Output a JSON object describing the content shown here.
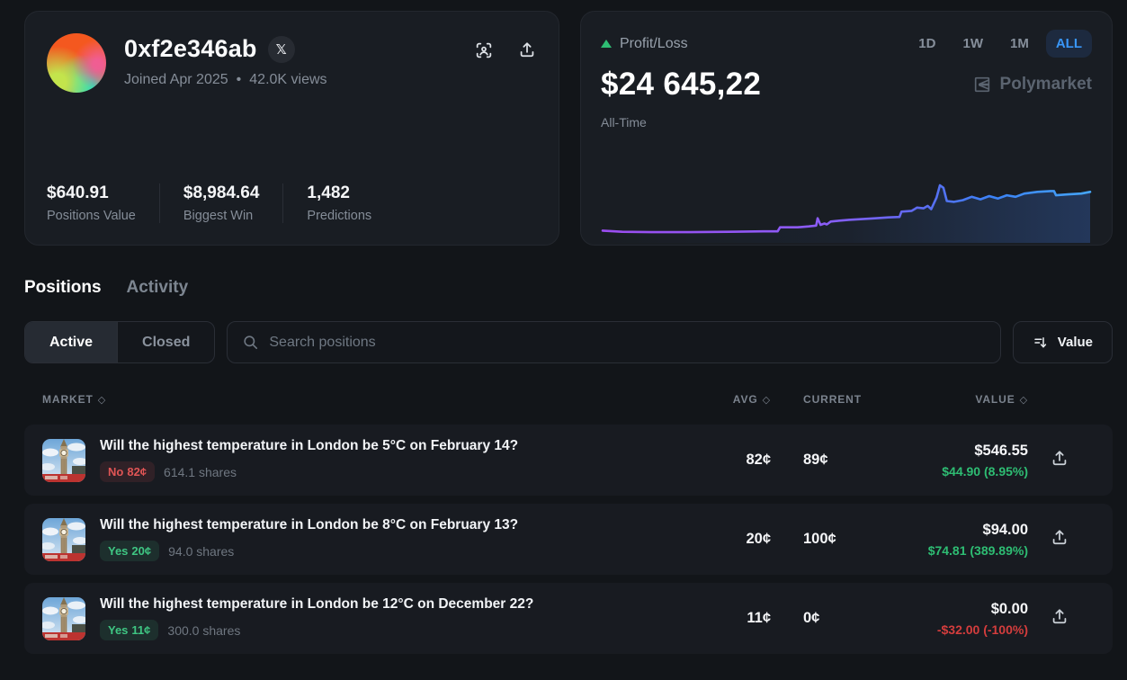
{
  "profile": {
    "username": "0xf2e346ab",
    "x_badge_glyph": "𝕏",
    "joined": "Joined Apr 2025",
    "separator": "•",
    "views": "42.0K views",
    "stats": [
      {
        "value": "$640.91",
        "label": "Positions Value"
      },
      {
        "value": "$8,984.64",
        "label": "Biggest Win"
      },
      {
        "value": "1,482",
        "label": "Predictions"
      }
    ]
  },
  "pnl": {
    "title": "Profit/Loss",
    "ranges": [
      "1D",
      "1W",
      "1M",
      "ALL"
    ],
    "active_range": "ALL",
    "amount": "$24 645,22",
    "period": "All-Time",
    "brand": "Polymarket"
  },
  "chart_data": {
    "type": "line",
    "title": "Profit/Loss All-Time",
    "legend": "none",
    "axes": "hidden",
    "final_value_label": "$24 645,22",
    "line_gradient": [
      "#9b4df0",
      "#8b5cf6",
      "#5f6af0",
      "#3b82f6",
      "#45a5f7"
    ],
    "series": [
      {
        "name": "Profit/Loss",
        "points": [
          [
            0,
            5.7
          ],
          [
            4,
            3.6
          ],
          [
            10,
            2.9
          ],
          [
            18,
            2.9
          ],
          [
            26,
            3.6
          ],
          [
            33,
            4.3
          ],
          [
            35.9,
            4.3
          ],
          [
            36.4,
            11.4
          ],
          [
            40,
            11.4
          ],
          [
            42.3,
            12.9
          ],
          [
            43.8,
            14.3
          ],
          [
            44.1,
            27
          ],
          [
            44.7,
            15.7
          ],
          [
            45.5,
            18
          ],
          [
            46,
            16.4
          ],
          [
            46.8,
            21.4
          ],
          [
            48.6,
            22.9
          ],
          [
            50.5,
            24.3
          ],
          [
            53.2,
            25.7
          ],
          [
            55.9,
            27.1
          ],
          [
            58.6,
            28.6
          ],
          [
            60.9,
            29.3
          ],
          [
            61.3,
            38.6
          ],
          [
            63.4,
            40
          ],
          [
            64.5,
            45.7
          ],
          [
            65.8,
            44.3
          ],
          [
            66.7,
            48.6
          ],
          [
            67.4,
            42.9
          ],
          [
            68.5,
            62.9
          ],
          [
            69.2,
            84.3
          ],
          [
            69.9,
            80
          ],
          [
            70.6,
            57.1
          ],
          [
            72.1,
            55.7
          ],
          [
            73.9,
            58.6
          ],
          [
            75.7,
            64.3
          ],
          [
            77.5,
            60
          ],
          [
            79.3,
            65.7
          ],
          [
            81.1,
            61.4
          ],
          [
            82.9,
            67.1
          ],
          [
            84.7,
            64.3
          ],
          [
            86.5,
            70
          ],
          [
            89.2,
            72.9
          ],
          [
            91.9,
            74.3
          ],
          [
            92.6,
            74.3
          ],
          [
            93,
            67.1
          ],
          [
            95.5,
            68.6
          ],
          [
            98.2,
            70
          ],
          [
            100,
            72.9
          ]
        ]
      }
    ]
  },
  "tabs": [
    {
      "label": "Positions"
    },
    {
      "label": "Activity"
    }
  ],
  "filters": {
    "active": "Active",
    "closed": "Closed",
    "search_placeholder": "Search positions",
    "sort_label": "Value"
  },
  "icons": {
    "sort_diamond": "◇"
  },
  "table": {
    "headers": {
      "market": "MARKET",
      "avg": "AVG",
      "current": "CURRENT",
      "value": "VALUE"
    },
    "rows": [
      {
        "title": "Will the highest temperature in London be 5°C on February 14?",
        "side": "No",
        "price": "82¢",
        "shares": "614.1 shares",
        "avg": "82¢",
        "current": "89¢",
        "value": "$546.55",
        "change": "$44.90 (8.95%)"
      },
      {
        "title": "Will the highest temperature in London be 8°C on February 13?",
        "side": "Yes",
        "price": "20¢",
        "shares": "94.0 shares",
        "avg": "20¢",
        "current": "100¢",
        "value": "$94.00",
        "change": "$74.81 (389.89%)"
      },
      {
        "title": "Will the highest temperature in London be 12°C on December 22?",
        "side": "Yes",
        "price": "11¢",
        "shares": "300.0 shares",
        "avg": "11¢",
        "current": "0¢",
        "value": "$0.00",
        "change": "-$32.00 (-100%)"
      }
    ]
  }
}
